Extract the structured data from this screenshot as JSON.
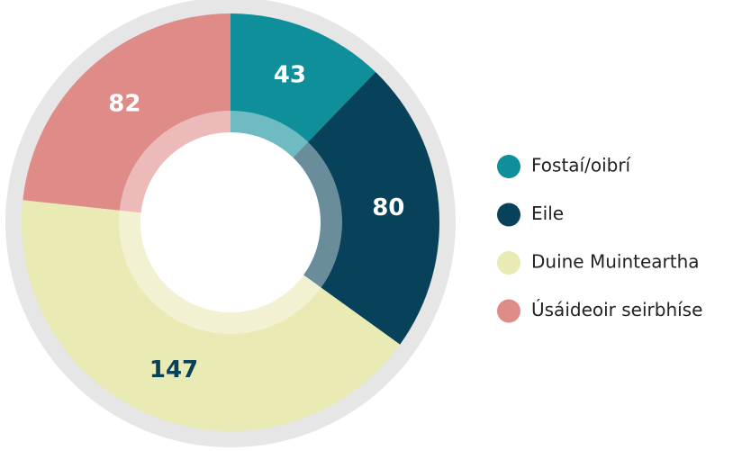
{
  "chart_data": {
    "type": "pie",
    "donut": true,
    "categories": [
      "Fostaí/oibrí",
      "Eile",
      "Duine Muinteartha",
      "Úsáideoir seirbhíse"
    ],
    "values": [
      43,
      80,
      147,
      82
    ],
    "colors": [
      "#0e8f99",
      "#08415a",
      "#eaeab4",
      "#df8c89"
    ],
    "label_colors": [
      "#ffffff",
      "#ffffff",
      "#08415a",
      "#ffffff"
    ],
    "legend": "right"
  }
}
